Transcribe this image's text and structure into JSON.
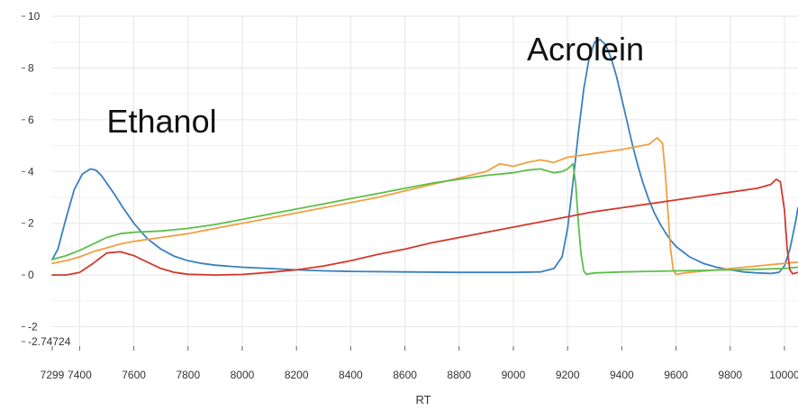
{
  "chart_data": {
    "type": "line",
    "xlabel": "RT",
    "ylabel": "",
    "xlim": [
      7299,
      10050
    ],
    "ylim": [
      -2.74724,
      10
    ],
    "x_ticks": [
      7299,
      7400,
      7600,
      7800,
      8000,
      8200,
      8400,
      8600,
      8800,
      9000,
      9200,
      9400,
      9600,
      9800,
      10000
    ],
    "x_tick_labels": [
      "7299",
      "7400",
      "7600",
      "7800",
      "8000",
      "8200",
      "8400",
      "8600",
      "8800",
      "9000",
      "9200",
      "9400",
      "9600",
      "9800",
      "10000"
    ],
    "y_ticks": [
      10,
      8,
      6,
      4,
      2,
      0,
      -2,
      -2.74724
    ],
    "y_tick_labels": [
      "10",
      "8",
      "6",
      "4",
      "2",
      "0",
      "-2",
      "-2.74724"
    ],
    "grid": true,
    "annotations": [
      {
        "text": "Ethanol",
        "x": 7500,
        "y": 5.5
      },
      {
        "text": "Acrolein",
        "x": 9050,
        "y": 8.3
      }
    ],
    "series": [
      {
        "color": "#3b80c0",
        "x": [
          7299,
          7320,
          7350,
          7380,
          7410,
          7440,
          7460,
          7480,
          7500,
          7530,
          7560,
          7600,
          7650,
          7700,
          7750,
          7800,
          7850,
          7900,
          8000,
          8100,
          8200,
          8300,
          8400,
          8600,
          8800,
          9000,
          9100,
          9150,
          9180,
          9200,
          9220,
          9240,
          9260,
          9280,
          9300,
          9320,
          9340,
          9360,
          9380,
          9400,
          9420,
          9440,
          9460,
          9480,
          9500,
          9520,
          9540,
          9560,
          9580,
          9600,
          9650,
          9700,
          9750,
          9800,
          9850,
          9900,
          9950,
          9980,
          10000,
          10020,
          10040,
          10050
        ],
        "y": [
          0.6,
          1.0,
          2.2,
          3.3,
          3.9,
          4.1,
          4.05,
          3.85,
          3.55,
          3.1,
          2.6,
          2.0,
          1.4,
          1.0,
          0.72,
          0.55,
          0.45,
          0.38,
          0.3,
          0.25,
          0.2,
          0.16,
          0.14,
          0.12,
          0.1,
          0.1,
          0.12,
          0.25,
          0.7,
          1.8,
          3.6,
          5.5,
          7.2,
          8.4,
          9.0,
          9.1,
          8.9,
          8.4,
          7.7,
          6.8,
          5.9,
          5.0,
          4.2,
          3.5,
          2.9,
          2.4,
          2.0,
          1.65,
          1.35,
          1.1,
          0.7,
          0.45,
          0.3,
          0.2,
          0.12,
          0.08,
          0.06,
          0.1,
          0.35,
          1.0,
          2.0,
          2.6
        ]
      },
      {
        "color": "#f0a040",
        "x": [
          7299,
          7350,
          7400,
          7450,
          7500,
          7550,
          7600,
          7700,
          7800,
          7900,
          8000,
          8100,
          8200,
          8300,
          8400,
          8500,
          8600,
          8700,
          8800,
          8900,
          8950,
          9000,
          9050,
          9100,
          9150,
          9200,
          9300,
          9400,
          9450,
          9500,
          9530,
          9550,
          9560,
          9570,
          9580,
          9590,
          9600,
          9620,
          9650,
          9700,
          9800,
          9900,
          10000,
          10050
        ],
        "y": [
          0.45,
          0.55,
          0.7,
          0.9,
          1.05,
          1.2,
          1.3,
          1.45,
          1.6,
          1.8,
          2.0,
          2.2,
          2.4,
          2.6,
          2.8,
          3.0,
          3.25,
          3.5,
          3.75,
          4.0,
          4.3,
          4.2,
          4.35,
          4.45,
          4.35,
          4.55,
          4.7,
          4.85,
          4.95,
          5.05,
          5.3,
          5.1,
          4.0,
          2.5,
          1.0,
          0.2,
          0.02,
          0.06,
          0.1,
          0.15,
          0.25,
          0.35,
          0.45,
          0.5
        ]
      },
      {
        "color": "#5cbf4a",
        "x": [
          7299,
          7350,
          7400,
          7450,
          7500,
          7550,
          7600,
          7700,
          7800,
          7900,
          8000,
          8100,
          8200,
          8300,
          8400,
          8500,
          8600,
          8700,
          8800,
          8900,
          9000,
          9050,
          9100,
          9150,
          9180,
          9200,
          9220,
          9230,
          9240,
          9250,
          9260,
          9270,
          9280,
          9300,
          9400,
          9500,
          9600,
          9700,
          9800,
          9900,
          10000,
          10050
        ],
        "y": [
          0.6,
          0.75,
          0.95,
          1.2,
          1.45,
          1.6,
          1.65,
          1.7,
          1.8,
          1.95,
          2.15,
          2.35,
          2.55,
          2.75,
          2.95,
          3.15,
          3.35,
          3.55,
          3.7,
          3.85,
          3.95,
          4.05,
          4.1,
          3.95,
          4.0,
          4.1,
          4.3,
          3.5,
          2.0,
          0.8,
          0.15,
          0.02,
          0.05,
          0.08,
          0.12,
          0.14,
          0.16,
          0.18,
          0.2,
          0.22,
          0.25,
          0.3
        ]
      },
      {
        "color": "#d23a2e",
        "x": [
          7299,
          7350,
          7400,
          7450,
          7500,
          7550,
          7600,
          7650,
          7700,
          7750,
          7800,
          7900,
          8000,
          8100,
          8200,
          8300,
          8400,
          8500,
          8600,
          8700,
          8800,
          8900,
          9000,
          9100,
          9200,
          9300,
          9400,
          9500,
          9600,
          9700,
          9800,
          9900,
          9950,
          9970,
          9985,
          10000,
          10010,
          10020,
          10030,
          10050
        ],
        "y": [
          0.0,
          0.0,
          0.1,
          0.45,
          0.85,
          0.9,
          0.75,
          0.5,
          0.25,
          0.1,
          0.03,
          0.0,
          0.02,
          0.1,
          0.2,
          0.35,
          0.55,
          0.8,
          1.0,
          1.25,
          1.45,
          1.65,
          1.85,
          2.05,
          2.25,
          2.45,
          2.6,
          2.75,
          2.9,
          3.05,
          3.2,
          3.35,
          3.5,
          3.7,
          3.6,
          2.5,
          1.0,
          0.2,
          0.05,
          0.1
        ]
      }
    ]
  }
}
